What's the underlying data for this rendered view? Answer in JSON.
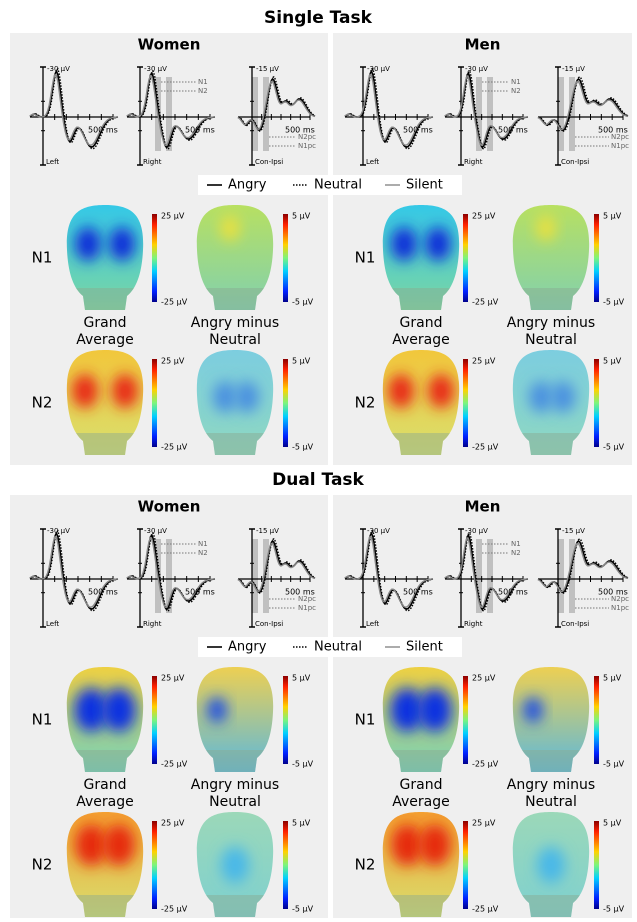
{
  "sections": [
    {
      "title": "Single Task",
      "legend": [
        "Angry",
        "Neutral",
        "Silent"
      ],
      "panels": [
        {
          "title": "Women",
          "erp": [
            {
              "amplitude": "-30 µV",
              "time": "500 ms",
              "label": "Left"
            },
            {
              "amplitude": "-30 µV",
              "time": "500 ms",
              "label": "Right",
              "components": [
                "N1",
                "N2"
              ]
            },
            {
              "amplitude": "-15 µV",
              "time": "500 ms",
              "label": "Con-Ipsi",
              "components": [
                "N2pc",
                "N1pc"
              ]
            }
          ],
          "rows": [
            "N1",
            "N2"
          ],
          "columns": [
            [
              "Grand",
              "Average"
            ],
            [
              "Angry minus",
              "Neutral"
            ]
          ],
          "colorbars": [
            {
              "max": "25 µV",
              "min": "-25 µV"
            },
            {
              "max": "5 µV",
              "min": "-5 µV"
            }
          ]
        },
        {
          "title": "Men",
          "erp": [
            {
              "amplitude": "-30 µV",
              "time": "500 ms",
              "label": "Left"
            },
            {
              "amplitude": "-30 µV",
              "time": "500 ms",
              "label": "Right",
              "components": [
                "N1",
                "N2"
              ]
            },
            {
              "amplitude": "-15 µV",
              "time": "500 ms",
              "label": "Con-Ipsi",
              "components": [
                "N2pc",
                "N1pc"
              ]
            }
          ],
          "rows": [
            "N1",
            "N2"
          ],
          "columns": [
            [
              "Grand",
              "Average"
            ],
            [
              "Angry minus",
              "Neutral"
            ]
          ],
          "colorbars": [
            {
              "max": "25 µV",
              "min": "-25 µV"
            },
            {
              "max": "5 µV",
              "min": "-5 µV"
            }
          ]
        }
      ]
    },
    {
      "title": "Dual Task",
      "legend": [
        "Angry",
        "Neutral",
        "Silent"
      ],
      "panels": [
        {
          "title": "Women",
          "erp": [
            {
              "amplitude": "-30 µV",
              "time": "500 ms",
              "label": "Left"
            },
            {
              "amplitude": "-30 µV",
              "time": "500 ms",
              "label": "Right",
              "components": [
                "N1",
                "N2"
              ]
            },
            {
              "amplitude": "-15 µV",
              "time": "500 ms",
              "label": "Con-Ipsi",
              "components": [
                "N2pc",
                "N1pc"
              ]
            }
          ],
          "rows": [
            "N1",
            "N2"
          ],
          "columns": [
            [
              "Grand",
              "Average"
            ],
            [
              "Angry minus",
              "Neutral"
            ]
          ],
          "colorbars": [
            {
              "max": "25 µV",
              "min": "-25 µV"
            },
            {
              "max": "5 µV",
              "min": "-5 µV"
            }
          ]
        },
        {
          "title": "Men",
          "erp": [
            {
              "amplitude": "-30 µV",
              "time": "500 ms",
              "label": "Left"
            },
            {
              "amplitude": "-30 µV",
              "time": "500 ms",
              "label": "Right",
              "components": [
                "N1",
                "N2"
              ]
            },
            {
              "amplitude": "-15 µV",
              "time": "500 ms",
              "label": "Con-Ipsi",
              "components": [
                "N2pc",
                "N1pc"
              ]
            }
          ],
          "rows": [
            "N1",
            "N2"
          ],
          "columns": [
            [
              "Grand",
              "Average"
            ],
            [
              "Angry minus",
              "Neutral"
            ]
          ],
          "colorbars": [
            {
              "max": "25 µV",
              "min": "-25 µV"
            },
            {
              "max": "5 µV",
              "min": "-5 µV"
            }
          ]
        }
      ]
    }
  ]
}
